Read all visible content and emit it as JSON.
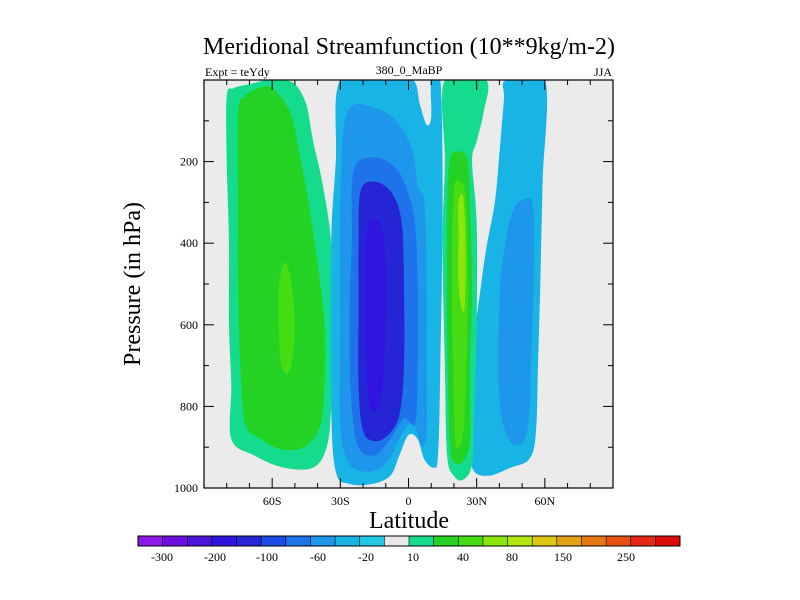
{
  "chart_data": {
    "type": "contour",
    "title": "Meridional Streamfunction (10**9kg/m-2)",
    "left_label": "Expt = teYdy",
    "center_label": "380_0_MaBP",
    "right_label": "JJA",
    "xlabel": "Latitude",
    "ylabel": "Pressure (in hPa)",
    "x_ticks": [
      {
        "value": -60,
        "label": "60S"
      },
      {
        "value": -30,
        "label": "30S"
      },
      {
        "value": 0,
        "label": "0"
      },
      {
        "value": 30,
        "label": "30N"
      },
      {
        "value": 60,
        "label": "60N"
      }
    ],
    "y_ticks": [
      {
        "value": 200,
        "label": "200"
      },
      {
        "value": 400,
        "label": "400"
      },
      {
        "value": 600,
        "label": "600"
      },
      {
        "value": 800,
        "label": "800"
      },
      {
        "value": 1000,
        "label": "1000"
      }
    ],
    "xlim": [
      -90,
      90
    ],
    "ylim": [
      1000,
      0
    ],
    "background_color": "#ebebeb",
    "colorbar": {
      "colors": [
        "#8c19e6",
        "#6a0fe0",
        "#4d14d9",
        "#3214e0",
        "#2525d6",
        "#1e4be6",
        "#1e73eb",
        "#1e96eb",
        "#19b4e6",
        "#1ec8e6",
        "#e8e8e8",
        "#14dc8c",
        "#23d223",
        "#46dc14",
        "#8ce60a",
        "#b4e614",
        "#dcc814",
        "#e6a014",
        "#e67814",
        "#e65014",
        "#e62814",
        "#dc0a0a"
      ],
      "tick_labels": [
        "-300",
        "-200",
        "-100",
        "-60",
        "-20",
        "10",
        "40",
        "80",
        "150",
        "250"
      ]
    },
    "regions": [
      {
        "level": 10,
        "color": "#14dc8c",
        "points": [
          [
            -80,
            40
          ],
          [
            -77,
            20
          ],
          [
            -70,
            10
          ],
          [
            -62,
            0
          ],
          [
            -56,
            0
          ],
          [
            -50,
            10
          ],
          [
            -45,
            60
          ],
          [
            -42,
            150
          ],
          [
            -38,
            250
          ],
          [
            -34,
            400
          ],
          [
            -33,
            600
          ],
          [
            -34,
            800
          ],
          [
            -36,
            900
          ],
          [
            -42,
            950
          ],
          [
            -55,
            950
          ],
          [
            -68,
            920
          ],
          [
            -78,
            880
          ],
          [
            -78,
            750
          ],
          [
            -79,
            600
          ],
          [
            -79,
            400
          ],
          [
            -80,
            200
          ]
        ]
      },
      {
        "level": 40,
        "color": "#23d223",
        "points": [
          [
            -75,
            80
          ],
          [
            -72,
            40
          ],
          [
            -66,
            20
          ],
          [
            -60,
            20
          ],
          [
            -52,
            80
          ],
          [
            -48,
            180
          ],
          [
            -44,
            300
          ],
          [
            -40,
            450
          ],
          [
            -37,
            600
          ],
          [
            -37,
            750
          ],
          [
            -39,
            850
          ],
          [
            -46,
            900
          ],
          [
            -56,
            905
          ],
          [
            -65,
            880
          ],
          [
            -72,
            840
          ],
          [
            -74,
            700
          ],
          [
            -75,
            500
          ],
          [
            -75,
            300
          ]
        ]
      },
      {
        "level": 80,
        "color": "#46dc14",
        "points": [
          [
            -57,
            510
          ],
          [
            -55,
            450
          ],
          [
            -53,
            460
          ],
          [
            -51,
            520
          ],
          [
            -50,
            600
          ],
          [
            -51,
            680
          ],
          [
            -53,
            720
          ],
          [
            -56,
            700
          ],
          [
            -57,
            620
          ]
        ]
      },
      {
        "level": -20,
        "color": "#19b4e6",
        "points": [
          [
            -30,
            0
          ],
          [
            -10,
            0
          ],
          [
            2,
            0
          ],
          [
            5,
            60
          ],
          [
            8,
            110
          ],
          [
            10,
            90
          ],
          [
            10,
            0
          ],
          [
            14,
            0
          ],
          [
            15,
            300
          ],
          [
            14,
            700
          ],
          [
            13,
            920
          ],
          [
            11,
            950
          ],
          [
            7,
            930
          ],
          [
            4,
            880
          ],
          [
            0,
            870
          ],
          [
            -4,
            920
          ],
          [
            -8,
            970
          ],
          [
            -16,
            990
          ],
          [
            -26,
            990
          ],
          [
            -32,
            960
          ],
          [
            -34,
            800
          ],
          [
            -34,
            400
          ],
          [
            -32,
            200
          ]
        ]
      },
      {
        "level": -60,
        "color": "#1e96eb",
        "points": [
          [
            -27,
            80
          ],
          [
            -14,
            70
          ],
          [
            -4,
            110
          ],
          [
            2,
            180
          ],
          [
            4,
            260
          ],
          [
            7,
            300
          ],
          [
            8,
            500
          ],
          [
            8,
            700
          ],
          [
            8,
            860
          ],
          [
            6,
            900
          ],
          [
            3,
            850
          ],
          [
            0,
            845
          ],
          [
            -4,
            880
          ],
          [
            -10,
            940
          ],
          [
            -18,
            960
          ],
          [
            -26,
            940
          ],
          [
            -30,
            850
          ],
          [
            -30,
            600
          ],
          [
            -30,
            300
          ]
        ]
      },
      {
        "level": -100,
        "color": "#1e73eb",
        "points": [
          [
            -24,
            220
          ],
          [
            -14,
            190
          ],
          [
            -5,
            220
          ],
          [
            0,
            280
          ],
          [
            3,
            360
          ],
          [
            4,
            500
          ],
          [
            4,
            700
          ],
          [
            3,
            840
          ],
          [
            -2,
            830
          ],
          [
            -8,
            880
          ],
          [
            -15,
            920
          ],
          [
            -22,
            900
          ],
          [
            -25,
            800
          ],
          [
            -26,
            600
          ],
          [
            -25,
            400
          ]
        ]
      },
      {
        "level": -200,
        "color": "#2525d6",
        "points": [
          [
            -21,
            270
          ],
          [
            -14,
            250
          ],
          [
            -7,
            280
          ],
          [
            -3,
            350
          ],
          [
            -2,
            500
          ],
          [
            -2,
            700
          ],
          [
            -4,
            820
          ],
          [
            -9,
            870
          ],
          [
            -15,
            885
          ],
          [
            -20,
            860
          ],
          [
            -22,
            750
          ],
          [
            -22,
            550
          ],
          [
            -22,
            400
          ]
        ]
      },
      {
        "level": -300,
        "color": "#3214e0",
        "points": [
          [
            -18,
            360
          ],
          [
            -15,
            340
          ],
          [
            -12,
            360
          ],
          [
            -10,
            450
          ],
          [
            -10,
            600
          ],
          [
            -11,
            720
          ],
          [
            -13,
            800
          ],
          [
            -16,
            810
          ],
          [
            -18,
            760
          ],
          [
            -19,
            600
          ],
          [
            -19,
            450
          ]
        ]
      },
      {
        "level": -20,
        "color": "#19b4e6",
        "points": [
          [
            26,
            700
          ],
          [
            30,
            580
          ],
          [
            34,
            420
          ],
          [
            38,
            300
          ],
          [
            40,
            180
          ],
          [
            42,
            50
          ],
          [
            43,
            0
          ],
          [
            60,
            0
          ],
          [
            59,
            250
          ],
          [
            58,
            500
          ],
          [
            57,
            700
          ],
          [
            56,
            870
          ],
          [
            53,
            930
          ],
          [
            45,
            950
          ],
          [
            35,
            970
          ],
          [
            28,
            950
          ],
          [
            27,
            850
          ]
        ]
      },
      {
        "level": -60,
        "color": "#1e96eb",
        "points": [
          [
            40,
            550
          ],
          [
            42,
            420
          ],
          [
            46,
            320
          ],
          [
            52,
            290
          ],
          [
            55,
            320
          ],
          [
            55,
            500
          ],
          [
            54,
            680
          ],
          [
            53,
            830
          ],
          [
            50,
            890
          ],
          [
            44,
            880
          ],
          [
            40,
            780
          ]
        ]
      },
      {
        "level": 10,
        "color": "#14dc8c",
        "points": [
          [
            16,
            0
          ],
          [
            34,
            0
          ],
          [
            33,
            80
          ],
          [
            30,
            150
          ],
          [
            28,
            200
          ],
          [
            30,
            350
          ],
          [
            30,
            600
          ],
          [
            29,
            800
          ],
          [
            28,
            940
          ],
          [
            24,
            980
          ],
          [
            20,
            970
          ],
          [
            17,
            920
          ],
          [
            16,
            700
          ],
          [
            15,
            400
          ],
          [
            16,
            200
          ]
        ]
      },
      {
        "level": 10,
        "color": "#14dc8c",
        "points": [
          [
            22,
            0
          ],
          [
            26,
            0
          ],
          [
            26,
            40
          ],
          [
            24,
            45
          ],
          [
            22,
            30
          ]
        ]
      },
      {
        "level": 40,
        "color": "#23d223",
        "points": [
          [
            18,
            200
          ],
          [
            22,
            175
          ],
          [
            26,
            195
          ],
          [
            27,
            300
          ],
          [
            28,
            500
          ],
          [
            27,
            700
          ],
          [
            27,
            880
          ],
          [
            24,
            935
          ],
          [
            20,
            935
          ],
          [
            18,
            880
          ],
          [
            17,
            600
          ],
          [
            17,
            350
          ]
        ]
      },
      {
        "level": 80,
        "color": "#46dc14",
        "points": [
          [
            20,
            270
          ],
          [
            23,
            250
          ],
          [
            25,
            280
          ],
          [
            26,
            420
          ],
          [
            26,
            600
          ],
          [
            25,
            770
          ],
          [
            24,
            870
          ],
          [
            21,
            900
          ],
          [
            20,
            780
          ],
          [
            19,
            500
          ]
        ]
      },
      {
        "level": 150,
        "color": "#8ce60a",
        "points": [
          [
            22,
            300
          ],
          [
            24,
            285
          ],
          [
            25,
            380
          ],
          [
            25,
            520
          ],
          [
            24,
            570
          ],
          [
            22,
            500
          ],
          [
            22,
            380
          ]
        ]
      }
    ]
  }
}
